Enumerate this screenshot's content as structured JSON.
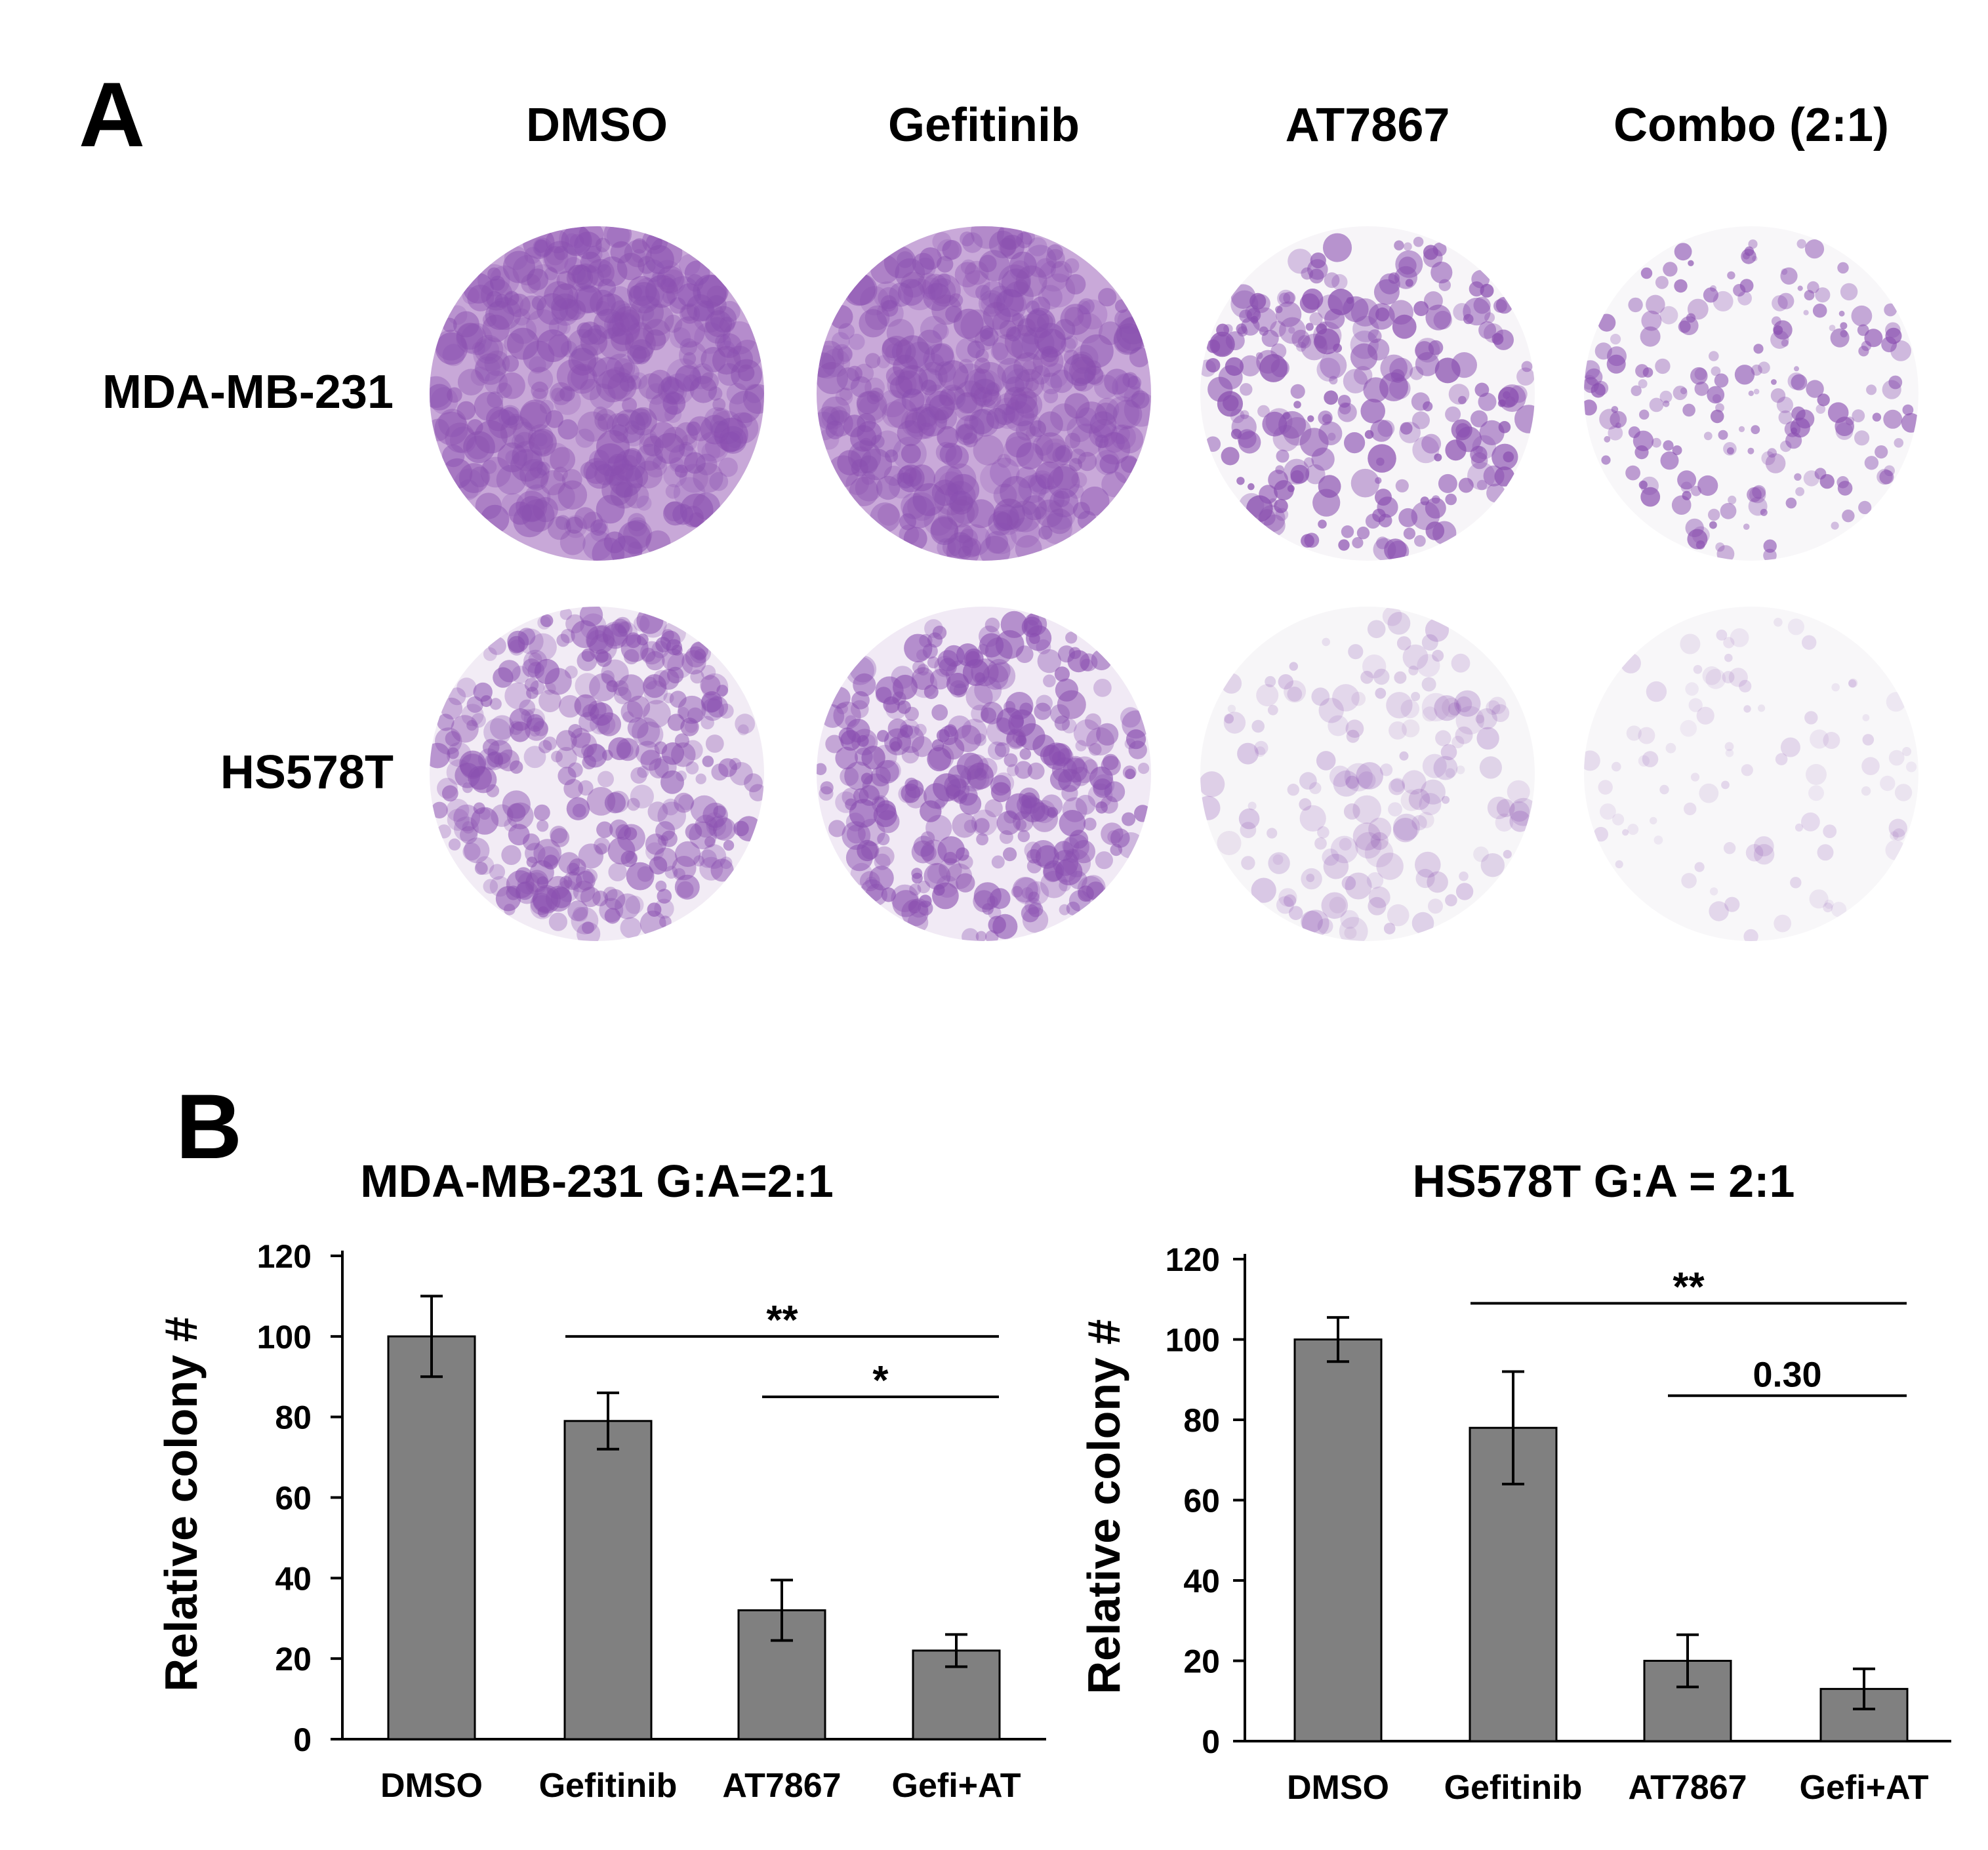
{
  "panel_a": {
    "letter": "A",
    "columns": [
      "DMSO",
      "Gefitinib",
      "AT7867",
      "Combo (2:1)"
    ],
    "rows": [
      "MDA-MB-231",
      "HS578T"
    ],
    "stain_color": "#8a4fb0"
  },
  "panel_b": {
    "letter": "B",
    "bar_color": "#808080"
  },
  "chart_data": [
    {
      "type": "bar",
      "title": "MDA-MB-231 G:A=2:1",
      "xlabel": "",
      "ylabel": "Relative colony #",
      "categories": [
        "DMSO",
        "Gefitinib",
        "AT7867",
        "Gefi+AT"
      ],
      "values": [
        100,
        79,
        32,
        22
      ],
      "errors": [
        10,
        7,
        7.5,
        4
      ],
      "ylim": [
        0,
        120
      ],
      "yticks": [
        "0",
        "20",
        "40",
        "60",
        "80",
        "100",
        "120"
      ],
      "grid": false,
      "significance": [
        {
          "from": "Gefitinib",
          "to": "Gefi+AT",
          "label": "**"
        },
        {
          "from": "AT7867",
          "to": "Gefi+AT",
          "label": "*"
        }
      ]
    },
    {
      "type": "bar",
      "title": "HS578T G:A = 2:1",
      "xlabel": "",
      "ylabel": "Relative colony #",
      "categories": [
        "DMSO",
        "Gefitinib",
        "AT7867",
        "Gefi+AT"
      ],
      "values": [
        100,
        78,
        20,
        13
      ],
      "errors": [
        5.5,
        14,
        6.5,
        5
      ],
      "ylim": [
        0,
        120
      ],
      "yticks": [
        "0",
        "20",
        "40",
        "60",
        "80",
        "100",
        "120"
      ],
      "grid": false,
      "significance": [
        {
          "from": "Gefitinib",
          "to": "Gefi+AT",
          "label": "**"
        },
        {
          "from": "AT7867",
          "to": "Gefi+AT",
          "label": "0.30"
        }
      ]
    }
  ]
}
